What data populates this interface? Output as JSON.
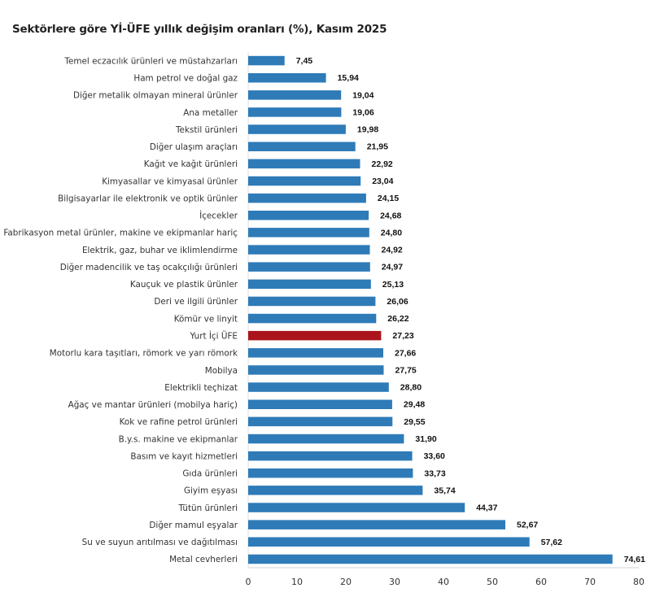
{
  "chart_data": {
    "type": "bar",
    "orientation": "horizontal",
    "title": "Sektörlere göre Yİ-ÜFE yıllık değişim oranları (%), Kasım 2025",
    "xlabel": "",
    "ylabel": "",
    "xlim": [
      0,
      80
    ],
    "xticks": [
      0,
      10,
      20,
      30,
      40,
      50,
      60,
      70,
      80
    ],
    "grid": false,
    "legend": "none",
    "colors": {
      "default": "#2e7bb8",
      "highlight": "#ab141c",
      "axis": "#e3e3e3"
    },
    "categories": [
      "Temel eczacılık ürünleri ve müstahzarları",
      "Ham petrol ve doğal gaz",
      "Diğer metalik olmayan mineral ürünler",
      "Ana metaller",
      "Tekstil ürünleri",
      "Diğer ulaşım araçları",
      "Kağıt ve kağıt ürünleri",
      "Kimyasallar ve kimyasal ürünler",
      "Bilgisayarlar ile elektronik ve optik ürünler",
      "İçecekler",
      "Fabrikasyon metal ürünler, makine ve ekipmanlar hariç",
      "Elektrik, gaz, buhar ve iklimlendirme",
      "Diğer madencilik ve taş ocakçılığı ürünleri",
      "Kauçuk ve plastik ürünler",
      "Deri ve ilgili ürünler",
      "Kömür ve linyit",
      "Yurt İçi ÜFE",
      "Motorlu kara taşıtları, römork ve yarı römork",
      "Mobilya",
      "Elektrikli teçhizat",
      "Ağaç ve mantar ürünleri (mobilya hariç)",
      "Kok ve rafine petrol ürünleri",
      "B.y.s. makine ve ekipmanlar",
      "Basım ve kayıt hizmetleri",
      "Gıda ürünleri",
      "Giyim eşyası",
      "Tütün ürünleri",
      "Diğer mamul eşyalar",
      "Su ve suyun arıtılması ve dağıtılması",
      "Metal cevherleri"
    ],
    "values": [
      7.45,
      15.94,
      19.04,
      19.06,
      19.98,
      21.95,
      22.92,
      23.04,
      24.15,
      24.68,
      24.8,
      24.92,
      24.97,
      25.13,
      26.06,
      26.22,
      27.23,
      27.66,
      27.75,
      28.8,
      29.48,
      29.55,
      31.9,
      33.6,
      33.73,
      35.74,
      44.37,
      52.67,
      57.62,
      74.61
    ],
    "value_labels": [
      "7,45",
      "15,94",
      "19,04",
      "19,06",
      "19,98",
      "21,95",
      "22,92",
      "23,04",
      "24,15",
      "24,68",
      "24,80",
      "24,92",
      "24,97",
      "25,13",
      "26,06",
      "26,22",
      "27,23",
      "27,66",
      "27,75",
      "28,80",
      "29,48",
      "29,55",
      "31,90",
      "33,60",
      "33,73",
      "35,74",
      "44,37",
      "52,67",
      "57,62",
      "74,61"
    ],
    "highlight_category": "Yurt İçi ÜFE"
  }
}
